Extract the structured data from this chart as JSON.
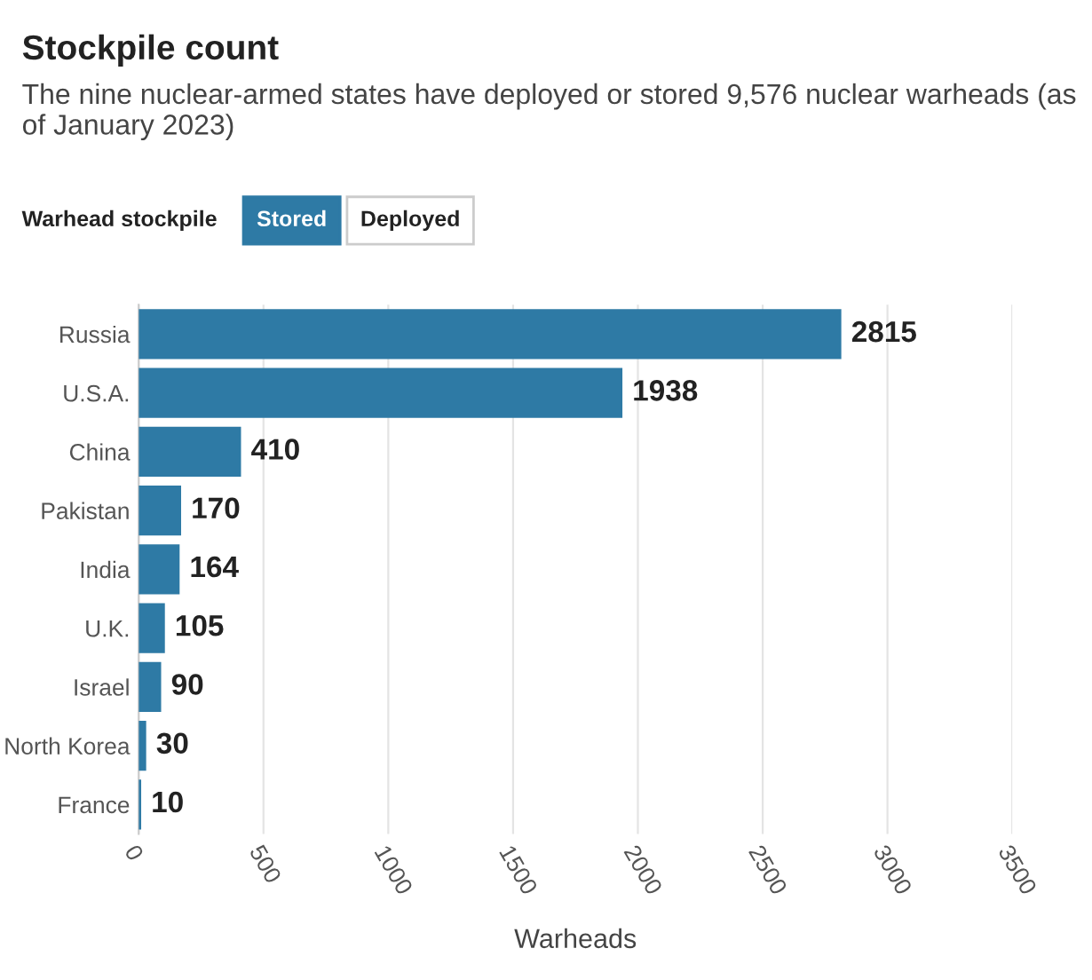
{
  "chart_data": {
    "type": "bar",
    "orientation": "horizontal",
    "title": "Stockpile count",
    "subtitle": "The nine nuclear-armed states have deployed or stored 9,576 nuclear warheads (as of January 2023)",
    "annotations": [
      "Warhead stockpile",
      "Stored",
      "Deployed"
    ],
    "categories": [
      "Russia",
      "U.S.A.",
      "China",
      "Pakistan",
      "India",
      "U.K.",
      "Israel",
      "North Korea",
      "France"
    ],
    "values": [
      2815,
      1938,
      410,
      170,
      164,
      105,
      90,
      30,
      10
    ],
    "color": "#2e7aa5",
    "data_labels": true,
    "xlabel": "Warheads",
    "xlim": [
      0,
      3500
    ],
    "xticks": [
      0,
      500,
      1000,
      1500,
      2000,
      2500,
      3000,
      3500
    ],
    "grid": "x"
  }
}
